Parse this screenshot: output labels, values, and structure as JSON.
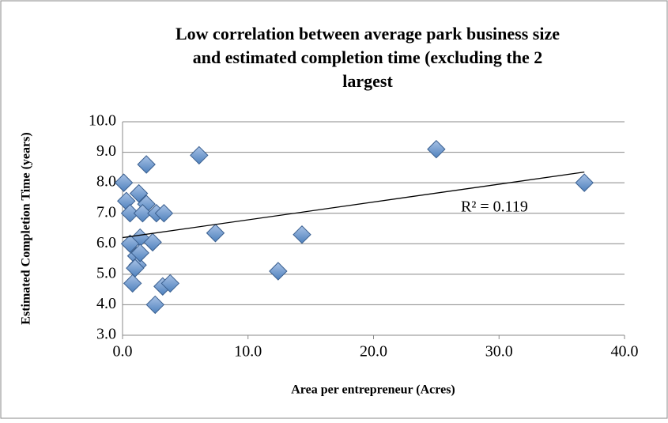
{
  "chart_data": {
    "type": "scatter",
    "title_lines": [
      "Low correlation between average park business size",
      "and estimated completion time (excluding the 2",
      "largest"
    ],
    "x_label": "Area per entrepreneur (Acres)",
    "y_label": "Estimated Completion Time (years)",
    "annotation": "R² = 0.119",
    "color": "#4f81bd",
    "grid": true,
    "xlim": [
      0,
      40
    ],
    "ylim": [
      3,
      10
    ],
    "xticks": [
      {
        "value": 0,
        "label": "0.0"
      },
      {
        "value": 10,
        "label": "10.0"
      },
      {
        "value": 20,
        "label": "20.0"
      },
      {
        "value": 30,
        "label": "30.0"
      },
      {
        "value": 40,
        "label": "40.0"
      }
    ],
    "yticks": [
      {
        "value": 3,
        "label": "3.0"
      },
      {
        "value": 4,
        "label": "4.0"
      },
      {
        "value": 5,
        "label": "5.0"
      },
      {
        "value": 6,
        "label": "6.0"
      },
      {
        "value": 7,
        "label": "7.0"
      },
      {
        "value": 8,
        "label": "8.0"
      },
      {
        "value": 9,
        "label": "9.0"
      },
      {
        "value": 10,
        "label": "10.0"
      }
    ],
    "series": [
      {
        "x": [
          0.1,
          0.3,
          1.9,
          6.1,
          25.0,
          36.8,
          1.3,
          0.6,
          1.9,
          1.6,
          2.7,
          3.3,
          7.4,
          14.3,
          12.4,
          2.4,
          1.4,
          0.6,
          1.1,
          1.2,
          1.4,
          0.8,
          3.2,
          3.8,
          2.6,
          1.0
        ],
        "values": [
          8.0,
          7.4,
          8.6,
          8.9,
          9.1,
          8.0,
          7.65,
          7.0,
          7.3,
          7.0,
          7.0,
          7.0,
          6.35,
          6.3,
          5.1,
          6.05,
          6.2,
          6.0,
          5.6,
          5.3,
          5.7,
          4.7,
          4.6,
          4.7,
          4.0,
          5.2
        ]
      }
    ],
    "trendline": {
      "x": [
        0,
        36.8
      ],
      "values": [
        6.2,
        8.35
      ]
    }
  }
}
